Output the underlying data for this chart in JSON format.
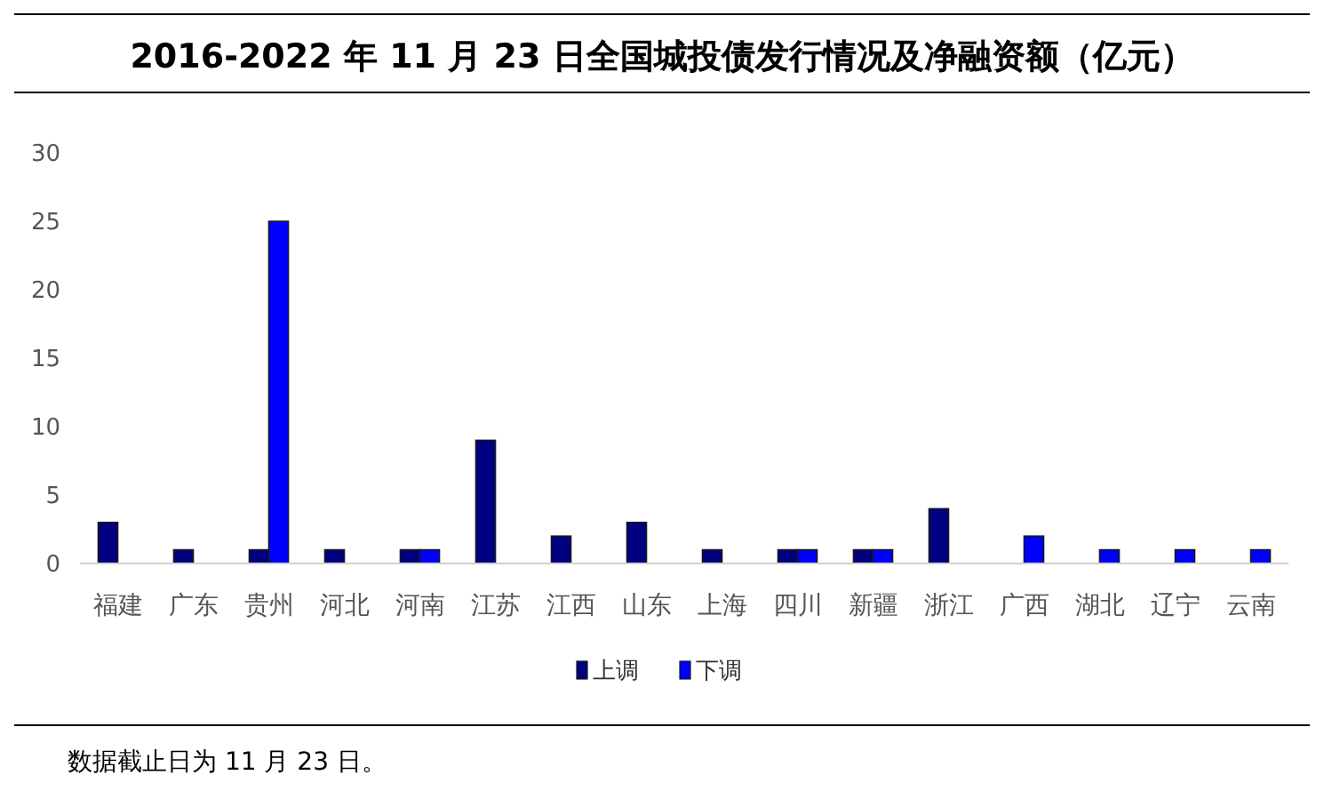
{
  "chart_data": {
    "type": "bar",
    "title": "2016-2022 年 11 月 23 日全国城投债发行情况及净融资额（亿元）",
    "categories": [
      "福建",
      "广东",
      "贵州",
      "河北",
      "河南",
      "江苏",
      "江西",
      "山东",
      "上海",
      "四川",
      "新疆",
      "浙江",
      "广西",
      "湖北",
      "辽宁",
      "云南"
    ],
    "series": [
      {
        "name": "上调",
        "color": "#000080",
        "values": [
          3,
          1,
          1,
          1,
          1,
          9,
          2,
          3,
          1,
          1,
          1,
          4,
          0,
          0,
          0,
          0
        ]
      },
      {
        "name": "下调",
        "color": "#0000ff",
        "values": [
          0,
          0,
          25,
          0,
          1,
          0,
          0,
          0,
          0,
          1,
          1,
          0,
          2,
          1,
          1,
          1
        ]
      }
    ],
    "ylim": [
      0,
      30
    ],
    "yticks": [
      0,
      5,
      10,
      15,
      20,
      25,
      30
    ],
    "grid": false,
    "legend": "bottom",
    "annotations": [
      "数据截止日为 11 月 23 日。"
    ]
  }
}
